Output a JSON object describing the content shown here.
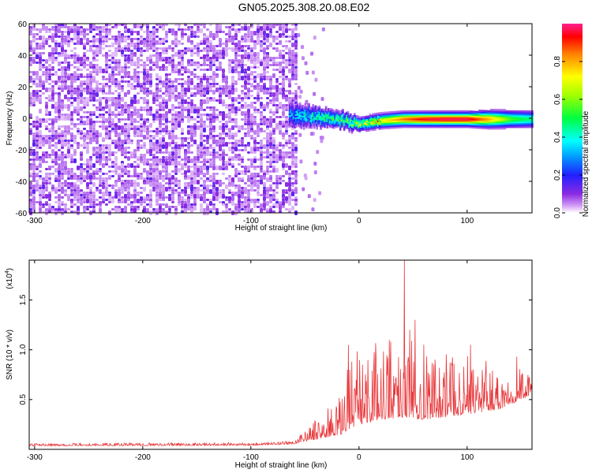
{
  "figure": {
    "title": "GN05.2025.308.20.08.E02"
  },
  "chart_data": [
    {
      "type": "heatmap",
      "name": "spectrogram",
      "xlabel": "Height of straight line (km)",
      "ylabel": "Frequency (Hz)",
      "xlim": [
        -305,
        160
      ],
      "ylim": [
        -60,
        60
      ],
      "xticks": [
        -300,
        -200,
        -100,
        0,
        100
      ],
      "yticks": [
        60,
        40,
        20,
        0,
        -20,
        -40,
        -60
      ],
      "xtick_labels": [
        "-300",
        "-200",
        "-100",
        "0",
        "100"
      ],
      "ytick_labels": [
        "60",
        "40",
        "20",
        "0",
        "-20",
        "-40",
        "-60"
      ],
      "noise_region_x": [
        -305,
        -58
      ],
      "signal_band": [
        {
          "x": -65,
          "f": 3,
          "halfwidth": 7,
          "amp": 0.3
        },
        {
          "x": -50,
          "f": 2,
          "halfwidth": 6,
          "amp": 0.35
        },
        {
          "x": -35,
          "f": 1,
          "halfwidth": 5,
          "amp": 0.4
        },
        {
          "x": -20,
          "f": 0,
          "halfwidth": 4,
          "amp": 0.45
        },
        {
          "x": 0,
          "f": -3,
          "halfwidth": 3,
          "amp": 0.55
        },
        {
          "x": 20,
          "f": -1,
          "halfwidth": 3,
          "amp": 0.7
        },
        {
          "x": 40,
          "f": 0,
          "halfwidth": 3,
          "amp": 0.85
        },
        {
          "x": 60,
          "f": 0,
          "halfwidth": 3,
          "amp": 0.95
        },
        {
          "x": 80,
          "f": 0,
          "halfwidth": 3,
          "amp": 0.98
        },
        {
          "x": 100,
          "f": 0,
          "halfwidth": 3,
          "amp": 0.97
        },
        {
          "x": 120,
          "f": 0,
          "halfwidth": 4,
          "amp": 0.8
        },
        {
          "x": 140,
          "f": 0,
          "halfwidth": 4,
          "amp": 0.55
        },
        {
          "x": 160,
          "f": 0,
          "halfwidth": 4,
          "amp": 0.45
        }
      ],
      "colorbar": {
        "label": "Normalized spectral amplitude",
        "range": [
          0,
          1
        ],
        "ticks": [
          0.0,
          0.2,
          0.4,
          0.6,
          0.8
        ],
        "tick_labels": [
          "0.0",
          "0.2",
          "0.4",
          "0.6",
          "0.8"
        ],
        "colormap": "rainbow"
      }
    },
    {
      "type": "line",
      "name": "snr",
      "xlabel": "Height of straight line (km)",
      "ylabel": "SNR (10 * v/v)",
      "scale_label": "(x10",
      "scale_exponent": "4",
      "scale_label_close": ")",
      "xlim": [
        -305,
        160
      ],
      "ylim": [
        0,
        1.9
      ],
      "xticks": [
        -300,
        -200,
        -100,
        0,
        100
      ],
      "xtick_labels": [
        "-300",
        "-200",
        "-100",
        "0",
        "100"
      ],
      "yticks": [
        0.5,
        1.0,
        1.5
      ],
      "ytick_labels": [
        "0.5",
        "1.0",
        "1.5"
      ],
      "color": "#e8373a",
      "envelope": [
        {
          "x": -305,
          "base": 0.035,
          "peak": 0.06
        },
        {
          "x": -100,
          "base": 0.04,
          "peak": 0.07
        },
        {
          "x": -62,
          "base": 0.05,
          "peak": 0.08
        },
        {
          "x": -50,
          "base": 0.08,
          "peak": 0.2
        },
        {
          "x": -30,
          "base": 0.12,
          "peak": 0.4
        },
        {
          "x": -15,
          "base": 0.15,
          "peak": 0.55
        },
        {
          "x": -10,
          "base": 0.2,
          "peak": 1.05
        },
        {
          "x": 0,
          "base": 0.25,
          "peak": 1.0
        },
        {
          "x": 20,
          "base": 0.3,
          "peak": 1.1
        },
        {
          "x": 40,
          "base": 0.32,
          "peak": 1.25
        },
        {
          "x": 60,
          "base": 0.3,
          "peak": 1.0
        },
        {
          "x": 100,
          "base": 0.35,
          "peak": 0.95
        },
        {
          "x": 130,
          "base": 0.4,
          "peak": 0.85
        },
        {
          "x": 150,
          "base": 0.5,
          "peak": 0.85
        },
        {
          "x": 160,
          "base": 0.55,
          "peak": 0.7
        }
      ],
      "spikes": [
        {
          "x": 42,
          "y": 1.9
        },
        {
          "x": 52,
          "y": 1.3
        },
        {
          "x": 47,
          "y": 1.2
        },
        {
          "x": 28,
          "y": 1.1
        },
        {
          "x": -10,
          "y": 1.05
        },
        {
          "x": 60,
          "y": 1.05
        },
        {
          "x": 103,
          "y": 1.05
        },
        {
          "x": 146,
          "y": 0.93
        }
      ]
    }
  ]
}
